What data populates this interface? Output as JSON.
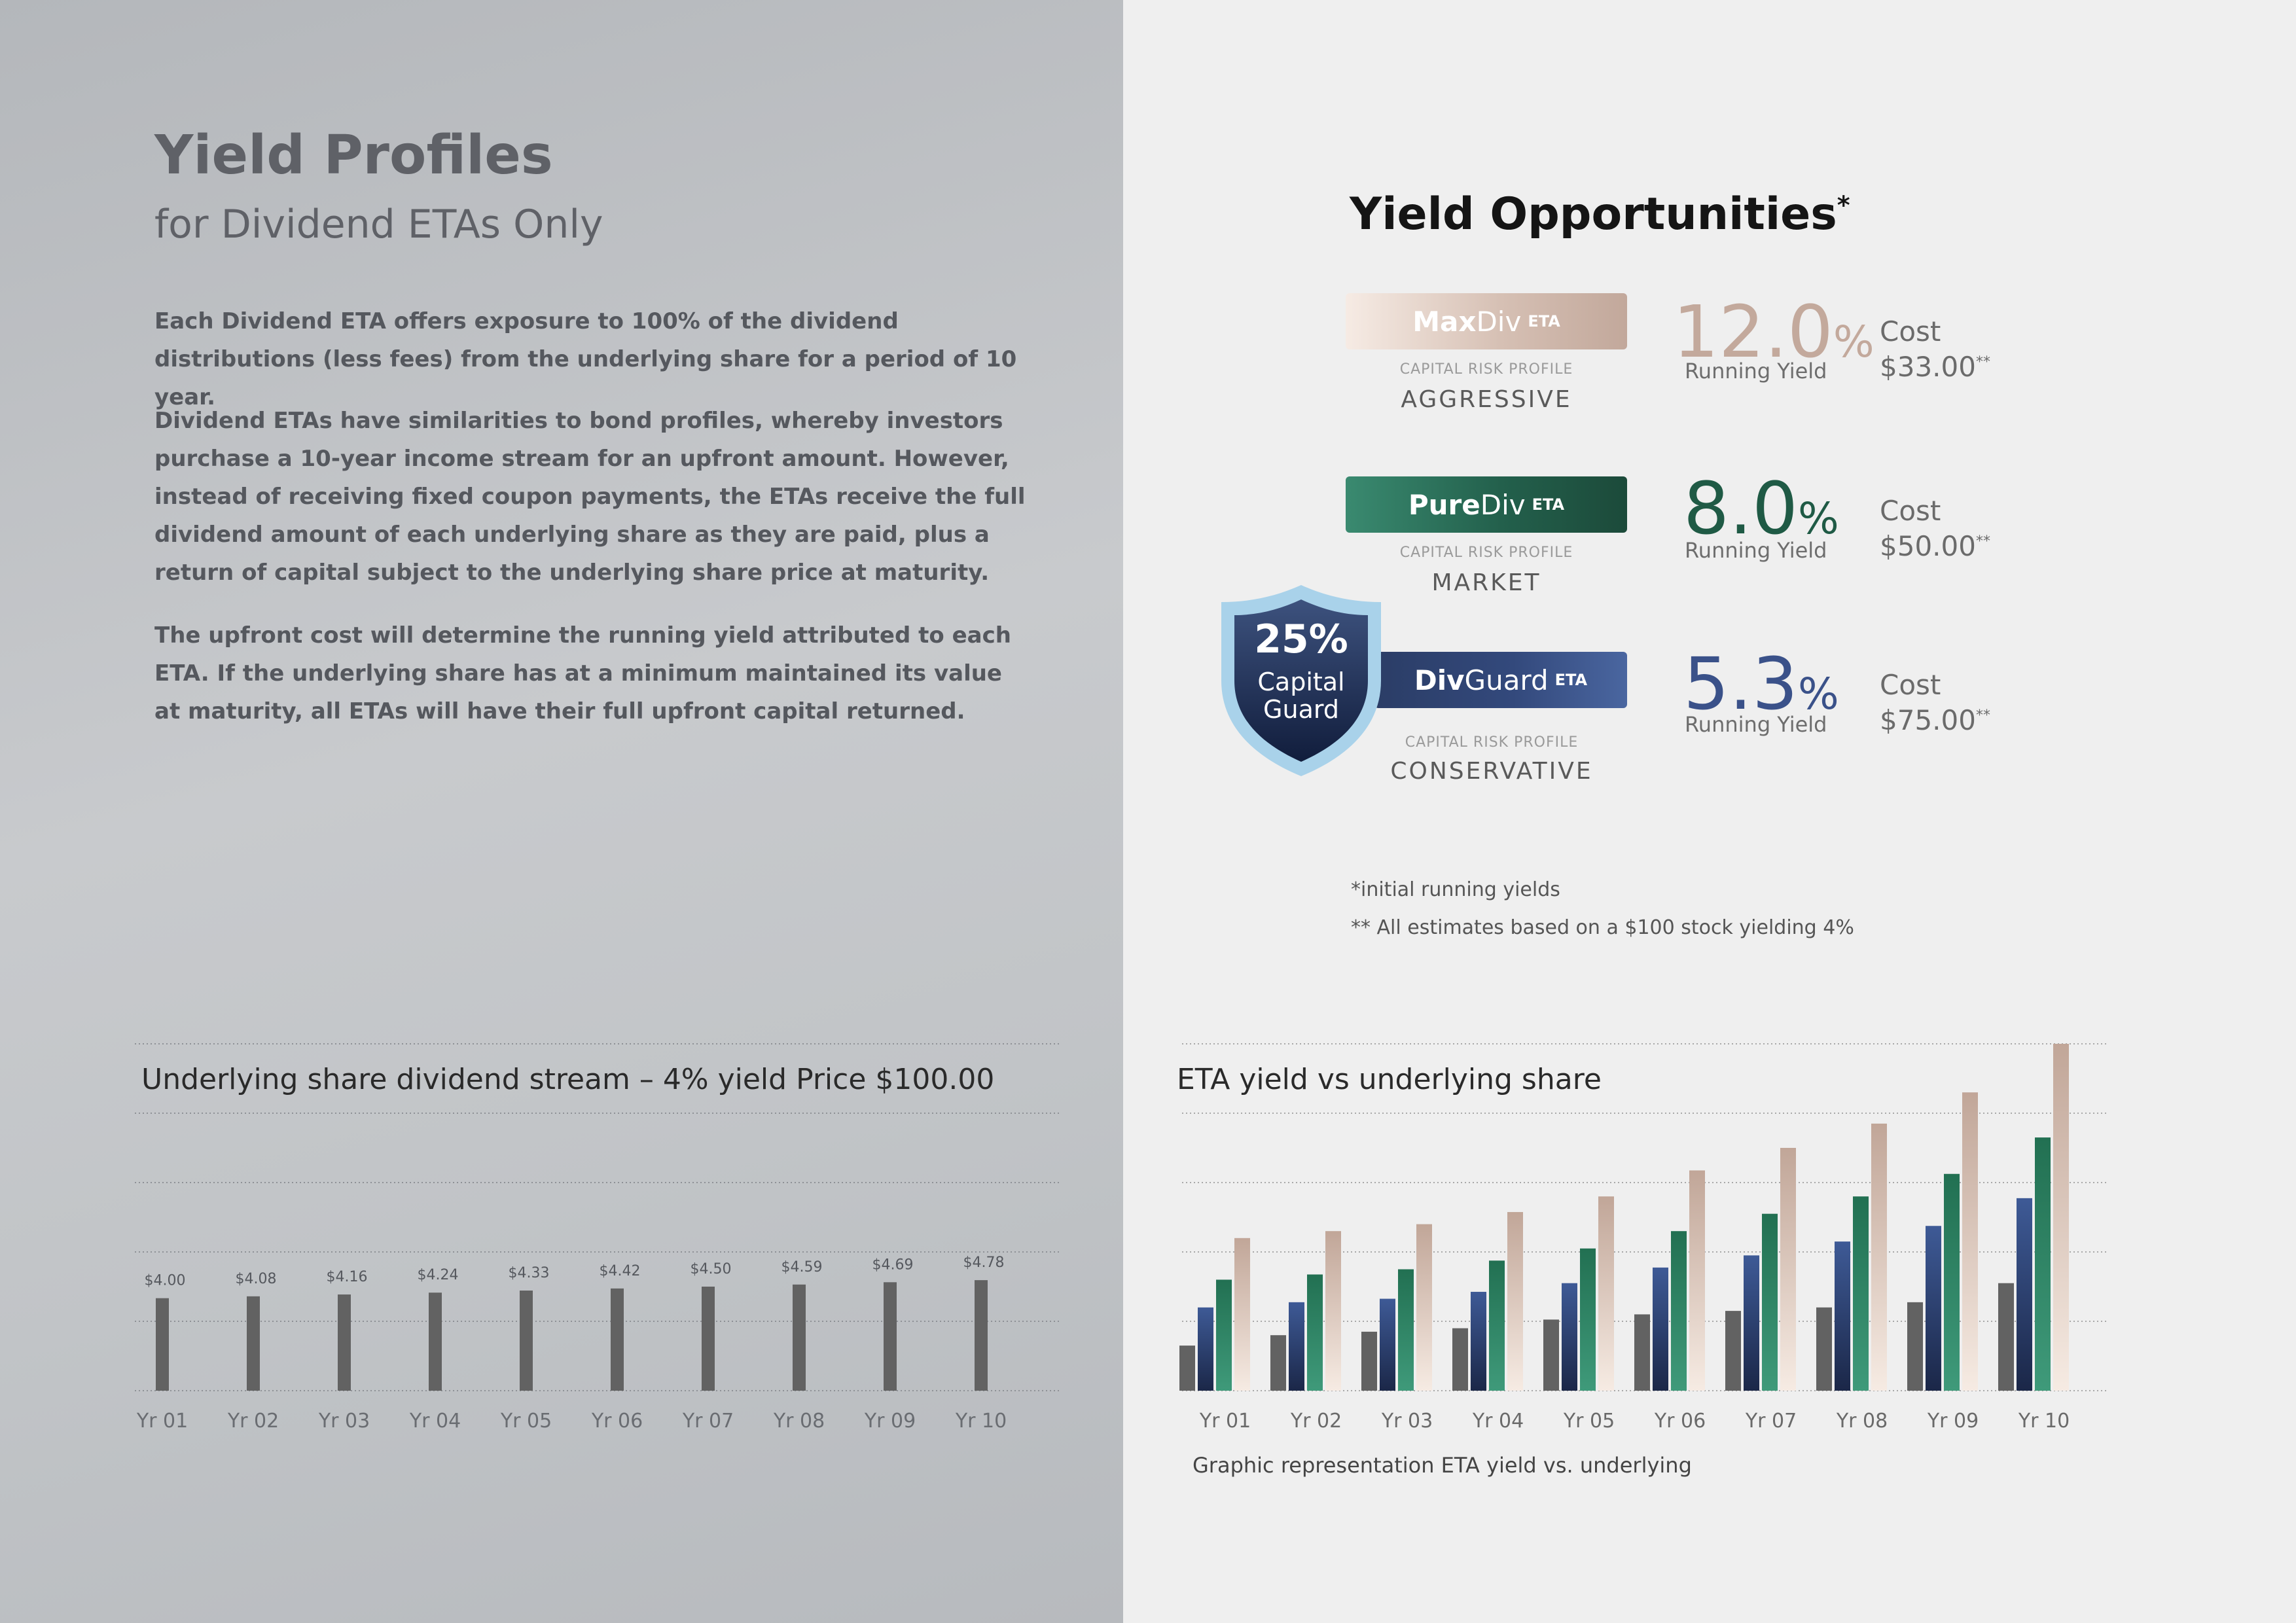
{
  "left": {
    "title": "Yield Profiles",
    "subtitle": "for Dividend ETAs Only",
    "paragraphs": [
      "Each Dividend ETA offers exposure to 100% of the dividend distributions (less fees) from the underlying share for a period of 10 year.",
      "Dividend ETAs have similarities to bond profiles, whereby investors purchase a 10-year income stream for an upfront amount. However, instead of receiving fixed coupon payments, the ETAs receive the full dividend amount of each underlying share as they are paid, plus a return of capital subject to the underlying share price at maturity.",
      "The upfront cost will determine the running yield attributed to each ETA. If the underlying share has at a minimum maintained its value at maturity, all ETAs will have their full upfront capital returned."
    ]
  },
  "opportunities": {
    "title": "Yield Opportunities",
    "title_mark": "*",
    "risk_label": "CAPITAL RISK PROFILE",
    "running_yield_label": "Running Yield",
    "cost_label": "Cost",
    "cost_mark": "**",
    "pct_sign": "%",
    "items": [
      {
        "name_bold": "Max",
        "name_rest": "Div",
        "tag": "ETA",
        "risk": "AGGRESSIVE",
        "yield": "12.0",
        "cost": "$33.00",
        "color": "#c3a99c"
      },
      {
        "name_bold": "Pure",
        "name_rest": "Div",
        "tag": "ETA",
        "risk": "MARKET",
        "yield": "8.0",
        "cost": "$50.00",
        "color": "#1f5a45"
      },
      {
        "name_bold": "Div",
        "name_rest": "Guard",
        "tag": "ETA",
        "risk": "CONSERVATIVE",
        "yield": "5.3",
        "cost": "$75.00",
        "color": "#3a5189"
      }
    ],
    "guard": {
      "percent": "25%",
      "line1": "Capital",
      "line2": "Guard"
    },
    "footnotes": [
      "*initial running yields",
      "** All estimates based on a $100 stock yielding 4%"
    ]
  },
  "colors": {
    "underlying": "#626262",
    "divguard": "#33497c",
    "purediv": "#2a7a60",
    "maxdiv": "#c8afa2"
  },
  "chart_data": [
    {
      "type": "bar",
      "title": "Underlying share dividend stream – 4% yield Price $100.00",
      "categories": [
        "Yr 01",
        "Yr 02",
        "Yr 03",
        "Yr 04",
        "Yr 05",
        "Yr 06",
        "Yr 07",
        "Yr 08",
        "Yr 09",
        "Yr 10"
      ],
      "values": [
        4.0,
        4.08,
        4.16,
        4.24,
        4.33,
        4.42,
        4.5,
        4.59,
        4.69,
        4.78
      ],
      "labels": [
        "$4.00",
        "$4.08",
        "$4.16",
        "$4.24",
        "$4.33",
        "$4.42",
        "$4.50",
        "$4.59",
        "$4.69",
        "$4.78"
      ],
      "ylim": [
        0,
        15
      ],
      "grid": true
    },
    {
      "type": "bar",
      "title": "ETA yield vs underlying share",
      "caption": "Graphic representation ETA yield vs. underlying",
      "categories": [
        "Yr 01",
        "Yr 02",
        "Yr 03",
        "Yr 04",
        "Yr 05",
        "Yr 06",
        "Yr 07",
        "Yr 08",
        "Yr 09",
        "Yr 10"
      ],
      "ylim": [
        0,
        100
      ],
      "grid": true,
      "series": [
        {
          "values": [
            13,
            16,
            17,
            18,
            20.5,
            22,
            23,
            24,
            25.5,
            31
          ]
        },
        {
          "values": [
            24,
            25.5,
            26.5,
            28.5,
            31,
            35.5,
            39,
            43,
            47.5,
            55.5
          ]
        },
        {
          "values": [
            32,
            33.5,
            35,
            37.5,
            41,
            46,
            51,
            56,
            62.5,
            73
          ]
        },
        {
          "values": [
            44,
            46,
            48,
            51.5,
            56,
            63.5,
            70,
            77,
            86,
            100
          ]
        }
      ]
    }
  ]
}
